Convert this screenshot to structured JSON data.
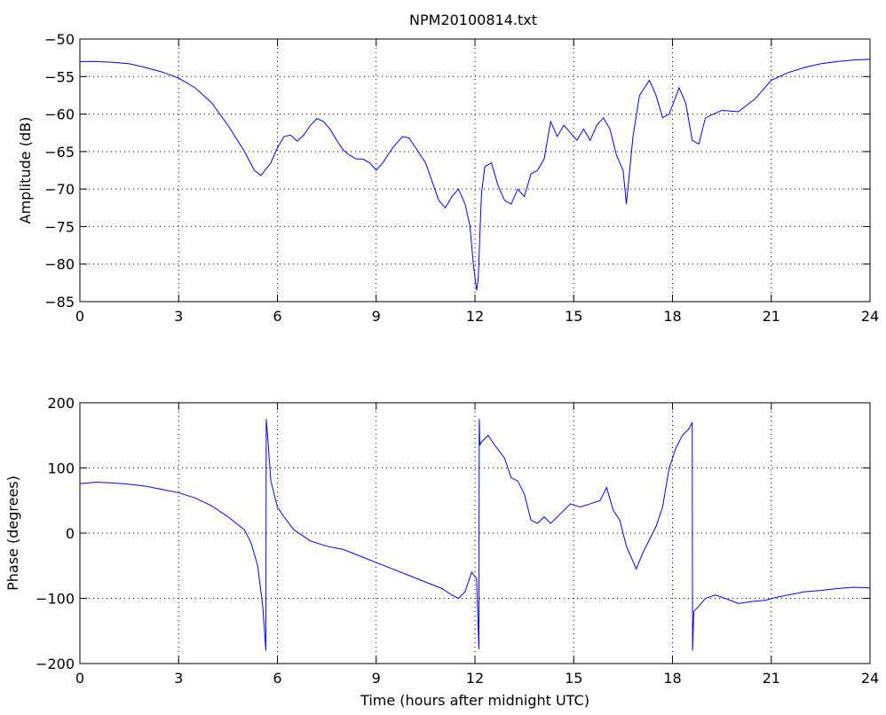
{
  "figure": {
    "title": "NPM20100814.txt",
    "line_color": "#0000ff"
  },
  "chart_data": [
    {
      "type": "line",
      "title": "NPM20100814.txt",
      "xlabel": "",
      "ylabel": "Amplitude (dB)",
      "xlim": [
        0,
        24
      ],
      "ylim": [
        -85,
        -50
      ],
      "xticks": [
        "0",
        "3",
        "6",
        "9",
        "12",
        "15",
        "18",
        "21",
        "24"
      ],
      "yticks": [
        "-85",
        "-80",
        "-75",
        "-70",
        "-65",
        "-60",
        "-55",
        "-50"
      ],
      "grid": true,
      "series": [
        {
          "color": "#0000ff",
          "x": [
            0,
            0.5,
            1,
            1.5,
            2,
            2.5,
            3,
            3.5,
            4,
            4.5,
            5,
            5.3,
            5.5,
            5.8,
            6,
            6.2,
            6.4,
            6.6,
            6.8,
            7,
            7.2,
            7.4,
            7.6,
            7.8,
            8,
            8.2,
            8.4,
            8.6,
            8.8,
            9,
            9.2,
            9.5,
            9.8,
            10,
            10.2,
            10.5,
            10.7,
            10.9,
            11.1,
            11.3,
            11.5,
            11.7,
            11.85,
            11.95,
            12.05,
            12.1,
            12.15,
            12.2,
            12.3,
            12.5,
            12.7,
            12.9,
            13.1,
            13.3,
            13.5,
            13.7,
            13.9,
            14.1,
            14.3,
            14.5,
            14.7,
            14.9,
            15.1,
            15.3,
            15.5,
            15.7,
            15.9,
            16.1,
            16.3,
            16.5,
            16.6,
            16.8,
            17,
            17.3,
            17.5,
            17.7,
            17.9,
            18.2,
            18.4,
            18.6,
            18.8,
            19,
            19.5,
            20,
            20.5,
            21,
            21.5,
            22,
            22.5,
            23,
            23.5,
            24
          ],
          "y": [
            -53,
            -53,
            -53.1,
            -53.3,
            -53.8,
            -54.4,
            -55.2,
            -56.5,
            -58.5,
            -61.5,
            -65,
            -67.5,
            -68.2,
            -66.5,
            -64.5,
            -63,
            -62.8,
            -63.6,
            -62.8,
            -61.5,
            -60.6,
            -61,
            -62,
            -63.5,
            -64.8,
            -65.5,
            -66,
            -66,
            -66.5,
            -67.5,
            -66.5,
            -64.5,
            -63,
            -63.2,
            -64.5,
            -66.5,
            -69,
            -71.5,
            -72.5,
            -71,
            -70,
            -72,
            -75,
            -80,
            -83.5,
            -82,
            -76,
            -70.5,
            -67,
            -66.5,
            -69.5,
            -71.5,
            -72,
            -70,
            -71,
            -68,
            -67.5,
            -66,
            -61,
            -63,
            -61.5,
            -62.5,
            -63.5,
            -62,
            -63.5,
            -61.5,
            -60.5,
            -62,
            -65.5,
            -67.5,
            -72,
            -63,
            -57.5,
            -55.5,
            -57.5,
            -60.5,
            -60,
            -56.5,
            -58.5,
            -63.5,
            -64,
            -60.5,
            -59.5,
            -59.7,
            -58,
            -55.5,
            -54.5,
            -53.8,
            -53.3,
            -53,
            -52.8,
            -52.7
          ]
        }
      ]
    },
    {
      "type": "line",
      "title": "",
      "xlabel": "Time (hours after midnight UTC)",
      "ylabel": "Phase (degrees)",
      "xlim": [
        0,
        24
      ],
      "ylim": [
        -200,
        200
      ],
      "xticks": [
        "0",
        "3",
        "6",
        "9",
        "12",
        "15",
        "18",
        "21",
        "24"
      ],
      "yticks": [
        "-200",
        "-100",
        "0",
        "100",
        "200"
      ],
      "grid": true,
      "series": [
        {
          "color": "#0000ff",
          "x": [
            0,
            0.5,
            1,
            1.5,
            2,
            2.5,
            3,
            3.5,
            4,
            4.5,
            5,
            5.2,
            5.4,
            5.55,
            5.65,
            5.66,
            5.7,
            5.8,
            6,
            6.2,
            6.5,
            6.8,
            7,
            7.5,
            8,
            8.5,
            9,
            9.5,
            10,
            10.5,
            11,
            11.3,
            11.5,
            11.7,
            11.9,
            12.05,
            12.12,
            12.13,
            12.15,
            12.2,
            12.4,
            12.6,
            12.9,
            13.1,
            13.3,
            13.5,
            13.7,
            13.9,
            14.1,
            14.3,
            14.6,
            14.9,
            15.2,
            15.5,
            15.8,
            16,
            16.2,
            16.4,
            16.6,
            16.9,
            17.1,
            17.3,
            17.5,
            17.7,
            17.9,
            18.1,
            18.3,
            18.5,
            18.6,
            18.61,
            18.65,
            18.8,
            19,
            19.3,
            19.6,
            20,
            20.4,
            20.8,
            21.2,
            21.6,
            22,
            22.5,
            23,
            23.5,
            24
          ],
          "y": [
            76,
            78,
            77,
            75,
            72,
            67,
            62,
            54,
            42,
            25,
            5,
            -15,
            -50,
            -110,
            -180,
            175,
            150,
            80,
            40,
            25,
            5,
            -5,
            -12,
            -20,
            -25,
            -35,
            -45,
            -55,
            -65,
            -75,
            -85,
            -95,
            -100,
            -90,
            -60,
            -70,
            -178,
            175,
            135,
            140,
            150,
            135,
            115,
            85,
            80,
            60,
            20,
            15,
            25,
            15,
            30,
            45,
            40,
            45,
            50,
            70,
            35,
            20,
            -20,
            -55,
            -30,
            -10,
            10,
            40,
            100,
            130,
            150,
            160,
            170,
            -180,
            -120,
            -112,
            -100,
            -95,
            -100,
            -108,
            -105,
            -103,
            -98,
            -94,
            -90,
            -88,
            -85,
            -83,
            -84
          ]
        }
      ]
    }
  ]
}
